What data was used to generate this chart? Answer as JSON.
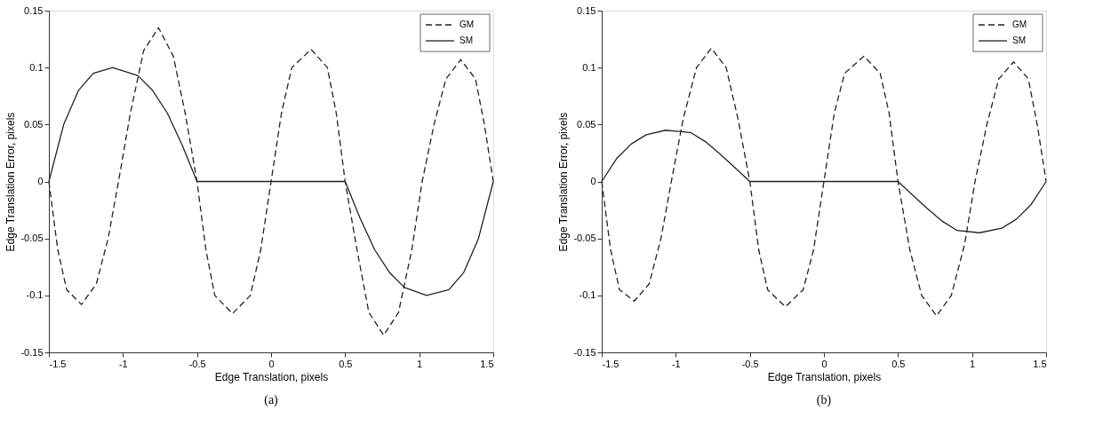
{
  "chart_data": [
    {
      "type": "line",
      "xlabel": "Edge Translation, pixels",
      "ylabel": "Edge Translation Error, pixels",
      "annotations": [
        "(a)"
      ],
      "xlim": [
        -1.5,
        1.5
      ],
      "xticks": [
        -1.5,
        -1,
        -0.5,
        0,
        0.5,
        1,
        1.5
      ],
      "ylim": [
        -0.15,
        0.15
      ],
      "yticks": [
        -0.15,
        -0.1,
        -0.05,
        0,
        0.05,
        0.1,
        0.15
      ],
      "grid": false,
      "legend": "top right",
      "marker": "none",
      "series": [
        {
          "name": "GM",
          "color": "#222222",
          "line_style": "dashed",
          "x": [
            -1.5,
            -1.44,
            -1.38,
            -1.28,
            -1.18,
            -1.1,
            -1.03,
            -0.95,
            -0.86,
            -0.76,
            -0.66,
            -0.58,
            -0.5,
            -0.44,
            -0.38,
            -0.26,
            -0.14,
            -0.07,
            0,
            0.07,
            0.14,
            0.27,
            0.38,
            0.44,
            0.5,
            0.58,
            0.66,
            0.76,
            0.86,
            0.95,
            1.02,
            1.1,
            1.18,
            1.28,
            1.38,
            1.44,
            1.5
          ],
          "values": [
            0,
            -0.06,
            -0.095,
            -0.108,
            -0.09,
            -0.05,
            0,
            0.06,
            0.115,
            0.135,
            0.11,
            0.06,
            0,
            -0.06,
            -0.1,
            -0.116,
            -0.1,
            -0.06,
            0,
            0.06,
            0.1,
            0.116,
            0.1,
            0.06,
            0,
            -0.06,
            -0.115,
            -0.135,
            -0.115,
            -0.06,
            0,
            0.05,
            0.09,
            0.107,
            0.09,
            0.05,
            0
          ]
        },
        {
          "name": "SM",
          "color": "#222222",
          "line_style": "solid",
          "x": [
            -1.5,
            -1.4,
            -1.3,
            -1.2,
            -1.07,
            -0.9,
            -0.8,
            -0.7,
            -0.6,
            -0.5,
            0.5,
            0.6,
            0.7,
            0.8,
            0.9,
            1.05,
            1.2,
            1.3,
            1.4,
            1.5
          ],
          "values": [
            0,
            0.05,
            0.08,
            0.095,
            0.1,
            0.093,
            0.08,
            0.06,
            0.032,
            0,
            0,
            -0.032,
            -0.06,
            -0.08,
            -0.093,
            -0.1,
            -0.095,
            -0.08,
            -0.05,
            0
          ]
        }
      ]
    },
    {
      "type": "line",
      "xlabel": "Edge Translation, pixels",
      "ylabel": "Edge Translation Error, pixels",
      "annotations": [
        "(b)"
      ],
      "xlim": [
        -1.5,
        1.5
      ],
      "xticks": [
        -1.5,
        -1,
        -0.5,
        0,
        0.5,
        1,
        1.5
      ],
      "ylim": [
        -0.15,
        0.15
      ],
      "yticks": [
        -0.15,
        -0.1,
        -0.05,
        0,
        0.05,
        0.1,
        0.15
      ],
      "grid": false,
      "legend": "top right",
      "marker": "none",
      "series": [
        {
          "name": "GM",
          "color": "#222222",
          "line_style": "dashed",
          "x": [
            -1.5,
            -1.44,
            -1.38,
            -1.28,
            -1.18,
            -1.1,
            -1.03,
            -0.95,
            -0.86,
            -0.76,
            -0.66,
            -0.58,
            -0.5,
            -0.44,
            -0.38,
            -0.26,
            -0.14,
            -0.07,
            0,
            0.07,
            0.14,
            0.27,
            0.38,
            0.44,
            0.5,
            0.58,
            0.66,
            0.76,
            0.86,
            0.95,
            1.02,
            1.1,
            1.18,
            1.28,
            1.38,
            1.44,
            1.5
          ],
          "values": [
            0,
            -0.06,
            -0.095,
            -0.105,
            -0.09,
            -0.05,
            0,
            0.055,
            0.1,
            0.117,
            0.1,
            0.055,
            0,
            -0.06,
            -0.095,
            -0.11,
            -0.095,
            -0.06,
            0,
            0.06,
            0.095,
            0.11,
            0.095,
            0.06,
            0,
            -0.06,
            -0.1,
            -0.118,
            -0.1,
            -0.055,
            0,
            0.05,
            0.09,
            0.105,
            0.09,
            0.05,
            0
          ]
        },
        {
          "name": "SM",
          "color": "#222222",
          "line_style": "solid",
          "x": [
            -1.5,
            -1.4,
            -1.3,
            -1.2,
            -1.07,
            -0.9,
            -0.8,
            -0.7,
            -0.6,
            -0.5,
            0.5,
            0.6,
            0.7,
            0.8,
            0.9,
            1.05,
            1.2,
            1.3,
            1.4,
            1.5
          ],
          "values": [
            0,
            0.02,
            0.033,
            0.041,
            0.045,
            0.043,
            0.035,
            0.024,
            0.012,
            0,
            0,
            -0.012,
            -0.024,
            -0.035,
            -0.043,
            -0.045,
            -0.041,
            -0.033,
            -0.02,
            0
          ]
        }
      ]
    }
  ]
}
